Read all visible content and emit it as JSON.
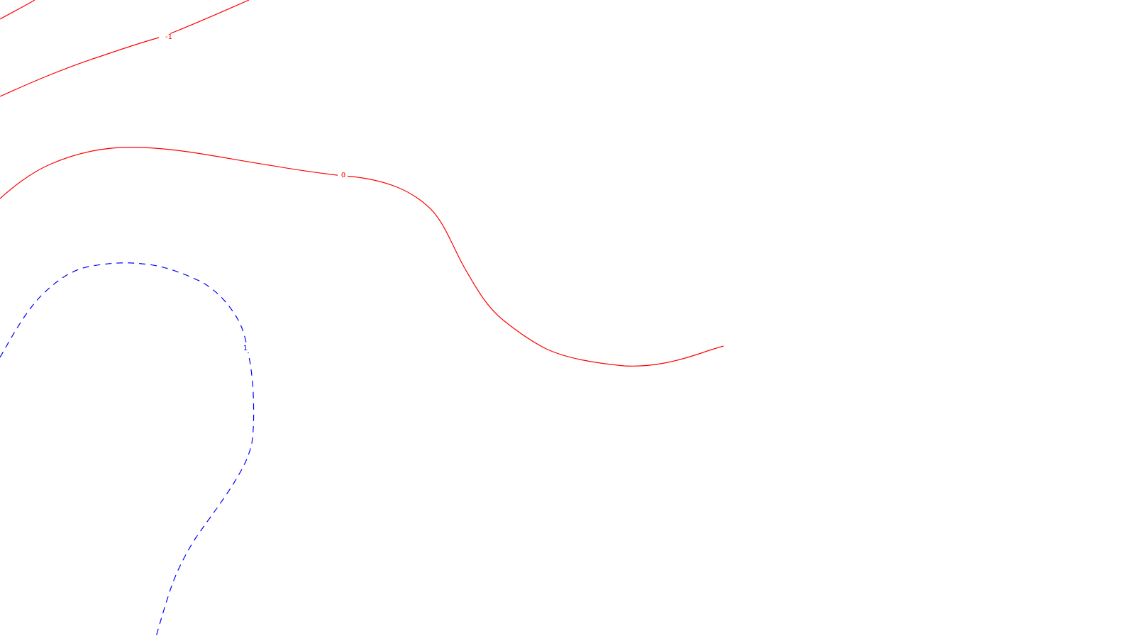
{
  "map": {
    "background_color": "#ffffff",
    "contours": [
      {
        "id": "neg-upper",
        "level": "",
        "color": "#ff0000",
        "style": "solid"
      },
      {
        "id": "neg-one",
        "level": "-1",
        "color": "#ff0000",
        "style": "solid"
      },
      {
        "id": "zero",
        "level": "0",
        "color": "#ff0000",
        "style": "solid"
      },
      {
        "id": "pos-one",
        "level": "1",
        "color": "#0000ff",
        "style": "dashed"
      }
    ]
  }
}
